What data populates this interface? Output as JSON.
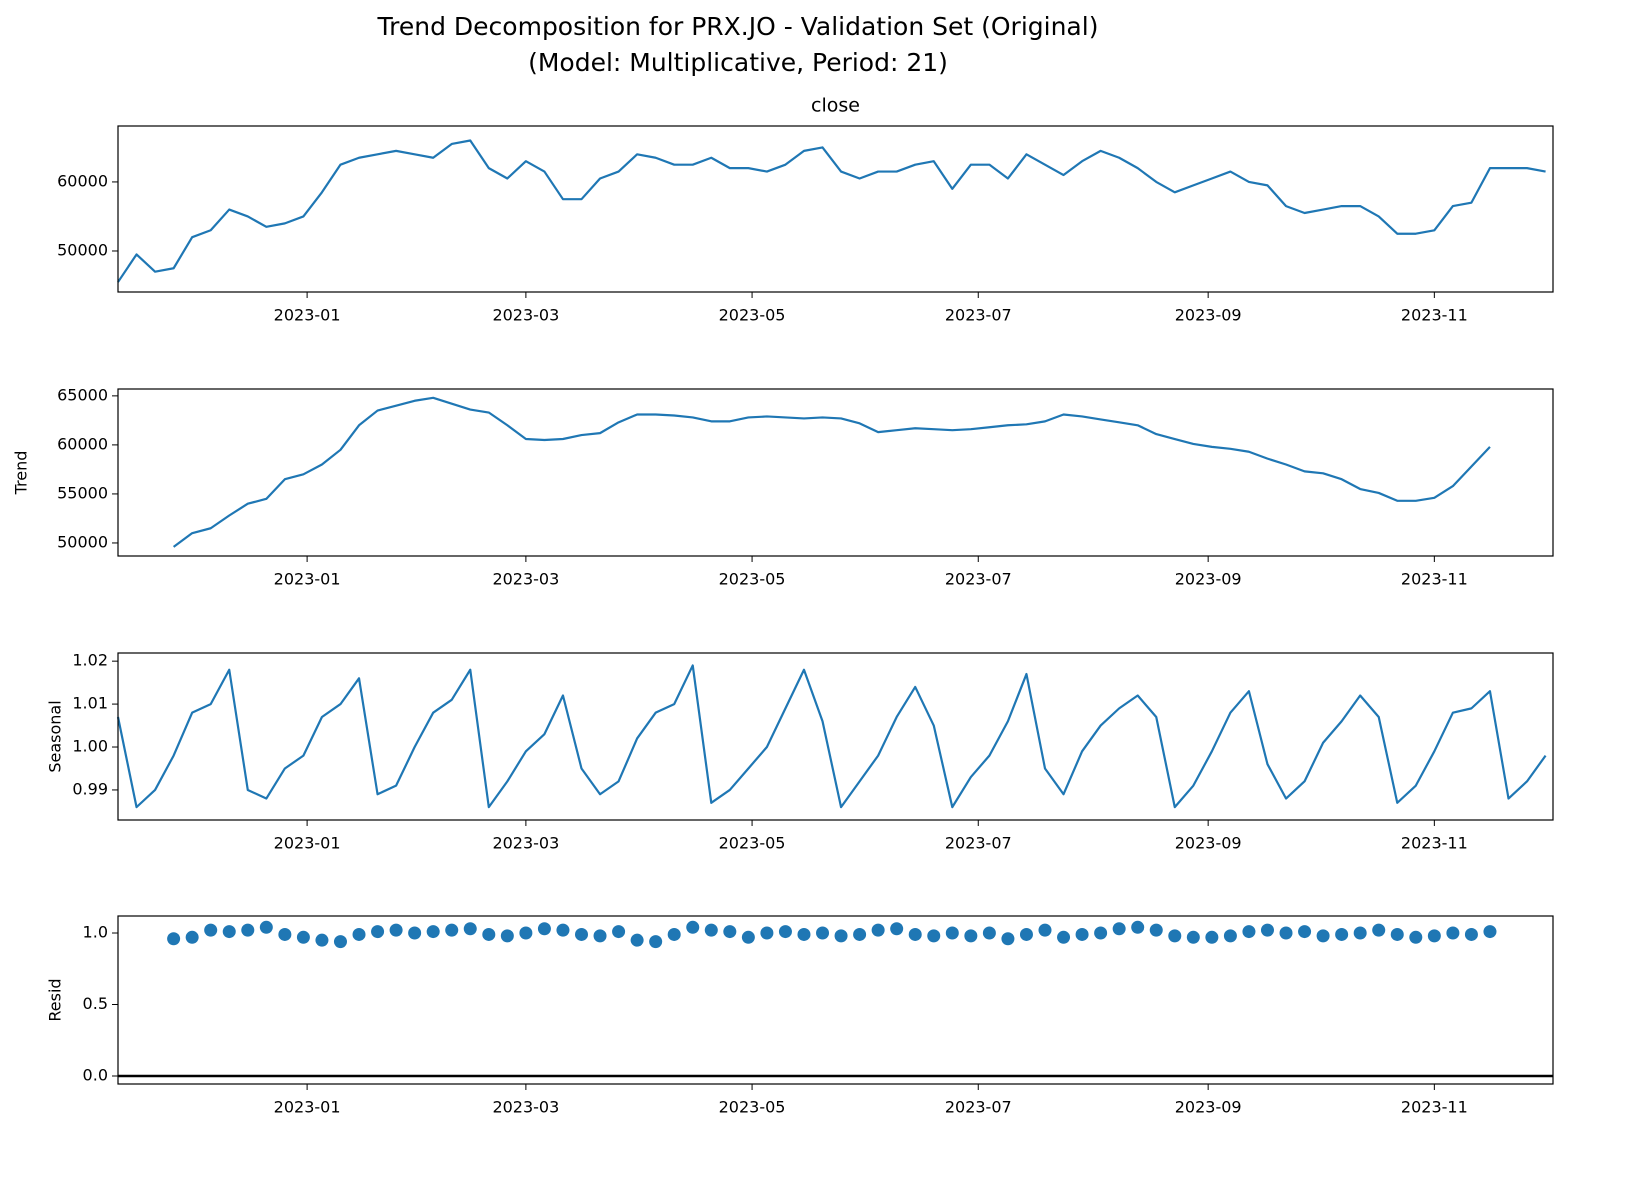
{
  "title": [
    "Trend Decomposition for PRX.JO - Validation Set (Original)",
    "(Model: Multiplicative, Period: 21)"
  ],
  "x": [
    "2022-11-11",
    "2022-11-16",
    "2022-11-21",
    "2022-11-26",
    "2022-12-01",
    "2022-12-06",
    "2022-12-11",
    "2022-12-16",
    "2022-12-21",
    "2022-12-26",
    "2022-12-31",
    "2023-01-05",
    "2023-01-10",
    "2023-01-15",
    "2023-01-20",
    "2023-01-25",
    "2023-01-30",
    "2023-02-04",
    "2023-02-09",
    "2023-02-14",
    "2023-02-19",
    "2023-02-24",
    "2023-03-01",
    "2023-03-06",
    "2023-03-11",
    "2023-03-16",
    "2023-03-21",
    "2023-03-26",
    "2023-03-31",
    "2023-04-05",
    "2023-04-10",
    "2023-04-15",
    "2023-04-20",
    "2023-04-25",
    "2023-04-30",
    "2023-05-05",
    "2023-05-10",
    "2023-05-15",
    "2023-05-20",
    "2023-05-25",
    "2023-05-30",
    "2023-06-04",
    "2023-06-09",
    "2023-06-14",
    "2023-06-19",
    "2023-06-24",
    "2023-06-29",
    "2023-07-04",
    "2023-07-09",
    "2023-07-14",
    "2023-07-19",
    "2023-07-24",
    "2023-07-29",
    "2023-08-03",
    "2023-08-08",
    "2023-08-13",
    "2023-08-18",
    "2023-08-23",
    "2023-08-28",
    "2023-09-02",
    "2023-09-07",
    "2023-09-12",
    "2023-09-17",
    "2023-09-22",
    "2023-09-27",
    "2023-10-02",
    "2023-10-07",
    "2023-10-12",
    "2023-10-17",
    "2023-10-22",
    "2023-10-27",
    "2023-11-01",
    "2023-11-06",
    "2023-11-11",
    "2023-11-16",
    "2023-11-21",
    "2023-11-26",
    "2023-12-01"
  ],
  "xlim": [
    "2022-11-11",
    "2023-12-03"
  ],
  "xticks": [
    {
      "value": "2023-01-01",
      "label": "2023-01"
    },
    {
      "value": "2023-03-01",
      "label": "2023-03"
    },
    {
      "value": "2023-05-01",
      "label": "2023-05"
    },
    {
      "value": "2023-07-01",
      "label": "2023-07"
    },
    {
      "value": "2023-09-01",
      "label": "2023-09"
    },
    {
      "value": "2023-11-01",
      "label": "2023-11"
    }
  ],
  "chart_data": [
    {
      "type": "line",
      "title": "close",
      "color": "#1f77b4",
      "ylim": [
        44060,
        68100
      ],
      "yticks": [
        50000,
        60000
      ],
      "values": [
        45500,
        49500,
        47000,
        47500,
        52000,
        53000,
        56000,
        55000,
        53500,
        54000,
        55000,
        58500,
        62500,
        63500,
        64000,
        64500,
        64000,
        63500,
        65500,
        66000,
        62000,
        60500,
        63000,
        61500,
        57500,
        57500,
        60500,
        61500,
        64000,
        63500,
        62500,
        62500,
        63500,
        62000,
        62000,
        61500,
        62500,
        64500,
        65000,
        61500,
        60500,
        61500,
        61500,
        62500,
        63000,
        59000,
        62500,
        62500,
        60500,
        64000,
        62500,
        61000,
        63000,
        64500,
        63500,
        62000,
        60000,
        58500,
        59500,
        60500,
        61500,
        60000,
        59500,
        56500,
        55500,
        56000,
        56500,
        56500,
        55000,
        52500,
        52500,
        53000,
        56500,
        57000,
        62000,
        62000,
        62000,
        61500
      ]
    },
    {
      "type": "line",
      "ylabel": "Trend",
      "color": "#1f77b4",
      "ylim": [
        48670,
        65700
      ],
      "yticks": [
        50000,
        55000,
        60000,
        65000
      ],
      "values": [
        null,
        null,
        null,
        49600,
        51000,
        51500,
        52800,
        54000,
        54500,
        56500,
        57000,
        58000,
        59500,
        62000,
        63500,
        64000,
        64500,
        64800,
        64200,
        63600,
        63300,
        62000,
        60600,
        60500,
        60600,
        61000,
        61200,
        62300,
        63100,
        63100,
        63000,
        62800,
        62400,
        62400,
        62800,
        62900,
        62800,
        62700,
        62800,
        62700,
        62200,
        61300,
        61500,
        61700,
        61600,
        61500,
        61600,
        61800,
        62000,
        62100,
        62400,
        63100,
        62900,
        62600,
        62300,
        62000,
        61100,
        60600,
        60100,
        59800,
        59600,
        59300,
        58600,
        58000,
        57300,
        57100,
        56500,
        55500,
        55100,
        54300,
        54300,
        54600,
        55800,
        57800,
        59800,
        null,
        null,
        null
      ]
    },
    {
      "type": "line",
      "ylabel": "Seasonal",
      "color": "#1f77b4",
      "ylim": [
        0.983,
        1.0219
      ],
      "yticks": [
        0.99,
        {
          "value": 1,
          "label": "1.00"
        },
        1.01,
        1.02
      ],
      "values": [
        1.007,
        0.986,
        0.99,
        0.998,
        1.008,
        1.01,
        1.018,
        0.99,
        0.988,
        0.995,
        0.998,
        1.007,
        1.01,
        1.016,
        0.989,
        0.991,
        1.0,
        1.008,
        1.011,
        1.018,
        0.986,
        0.992,
        0.999,
        1.003,
        1.012,
        0.995,
        0.989,
        0.992,
        1.002,
        1.008,
        1.01,
        1.019,
        0.987,
        0.99,
        0.995,
        1.0,
        1.009,
        1.018,
        1.006,
        0.986,
        0.992,
        0.998,
        1.007,
        1.014,
        1.005,
        0.986,
        0.993,
        0.998,
        1.006,
        1.017,
        0.995,
        0.989,
        0.999,
        1.005,
        1.009,
        1.012,
        1.007,
        0.986,
        0.991,
        0.999,
        1.008,
        1.013,
        0.996,
        0.988,
        0.992,
        1.001,
        1.006,
        1.012,
        1.007,
        0.987,
        0.991,
        0.999,
        1.008,
        1.009,
        1.013,
        0.988,
        0.992,
        0.998
      ]
    },
    {
      "type": "scatter",
      "ylabel": "Resid",
      "color": "#1f77b4",
      "hline": 0,
      "ylim": [
        -0.056,
        1.119
      ],
      "yticks": [
        {
          "value": 0,
          "label": "0.0"
        },
        0.5,
        {
          "value": 1,
          "label": "1.0"
        }
      ],
      "values": [
        null,
        null,
        null,
        0.96,
        0.97,
        1.02,
        1.01,
        1.02,
        1.04,
        0.99,
        0.97,
        0.95,
        0.94,
        0.99,
        1.01,
        1.02,
        1.0,
        1.01,
        1.02,
        1.03,
        0.99,
        0.98,
        1.0,
        1.03,
        1.02,
        0.99,
        0.98,
        1.01,
        0.95,
        0.94,
        0.99,
        1.04,
        1.02,
        1.01,
        0.97,
        1.0,
        1.01,
        0.99,
        1.0,
        0.98,
        0.99,
        1.02,
        1.03,
        0.99,
        0.98,
        1.0,
        0.98,
        1.0,
        0.96,
        0.99,
        1.02,
        0.97,
        0.99,
        1.0,
        1.03,
        1.04,
        1.02,
        0.98,
        0.97,
        0.97,
        0.98,
        1.01,
        1.02,
        1.0,
        1.01,
        0.98,
        0.99,
        1.0,
        1.02,
        0.99,
        0.97,
        0.98,
        1.0,
        0.99,
        1.01,
        null,
        null,
        null
      ]
    }
  ]
}
